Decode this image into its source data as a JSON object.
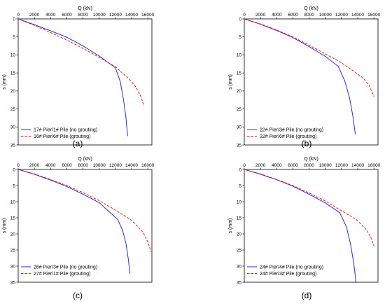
{
  "colors": {
    "no_grouting": "#2b2bd6",
    "grouting": "#e02020",
    "axis": "#000000"
  },
  "chart_data": [
    {
      "panel_label": "(a)",
      "type": "line",
      "xlabel": "Q (kN)",
      "ylabel": "s (mm)",
      "x_ticks": [
        0,
        2000,
        4000,
        6000,
        8000,
        10000,
        12000,
        14000,
        16000
      ],
      "y_ticks": [
        0,
        5,
        10,
        15,
        20,
        25,
        30,
        35
      ],
      "xlim": [
        0,
        16500
      ],
      "ylim": [
        0,
        35
      ],
      "legend_position": "bottom-left",
      "series": [
        {
          "name": "17# Pier/1# Pile (no grouting)",
          "style": "solid",
          "points": [
            [
              0,
              0
            ],
            [
              2000,
              1.6
            ],
            [
              4000,
              3.3
            ],
            [
              6000,
              5.1
            ],
            [
              8000,
              7.5
            ],
            [
              10000,
              10.3
            ],
            [
              12000,
              13.6
            ],
            [
              12600,
              17.5
            ],
            [
              13000,
              22.5
            ],
            [
              13300,
              27.5
            ],
            [
              13500,
              32.5
            ]
          ]
        },
        {
          "name": "16# Pier/6# Pile (grouting)",
          "style": "dashed",
          "points": [
            [
              0,
              0
            ],
            [
              2000,
              1.8
            ],
            [
              4000,
              3.8
            ],
            [
              6000,
              5.9
            ],
            [
              8000,
              8.2
            ],
            [
              10000,
              10.7
            ],
            [
              12000,
              13.3
            ],
            [
              13500,
              16.3
            ],
            [
              14500,
              18.8
            ],
            [
              15100,
              21.3
            ],
            [
              15500,
              24
            ]
          ]
        }
      ]
    },
    {
      "panel_label": "(b)",
      "type": "line",
      "xlabel": "Q (kN)",
      "ylabel": "s (mm)",
      "x_ticks": [
        0,
        2000,
        4000,
        6000,
        8000,
        10000,
        12000,
        14000,
        16000
      ],
      "y_ticks": [
        0,
        5,
        10,
        15,
        20,
        25,
        30,
        35
      ],
      "xlim": [
        0,
        16500
      ],
      "ylim": [
        0,
        35
      ],
      "legend_position": "bottom-left",
      "series": [
        {
          "name": "22# Pier/3# Pile (no grouting)",
          "style": "solid",
          "points": [
            [
              0,
              0
            ],
            [
              2000,
              1.5
            ],
            [
              4000,
              3.2
            ],
            [
              6000,
              5.2
            ],
            [
              8000,
              7.7
            ],
            [
              10000,
              10.4
            ],
            [
              11600,
              13.2
            ],
            [
              12400,
              17.2
            ],
            [
              13000,
              22
            ],
            [
              13400,
              27
            ],
            [
              13700,
              32
            ]
          ]
        },
        {
          "name": "22# Pier/6# Pile (grouting)",
          "style": "dashed",
          "points": [
            [
              0,
              0
            ],
            [
              2000,
              1.4
            ],
            [
              4000,
              3.1
            ],
            [
              6000,
              5
            ],
            [
              8000,
              7.3
            ],
            [
              10000,
              9.7
            ],
            [
              12000,
              12.2
            ],
            [
              13500,
              14.5
            ],
            [
              14700,
              16.5
            ],
            [
              15400,
              18.5
            ],
            [
              16000,
              21.5
            ]
          ]
        }
      ]
    },
    {
      "panel_label": "(c)",
      "type": "line",
      "xlabel": "Q (kN)",
      "ylabel": "s (mm)",
      "x_ticks": [
        0,
        2000,
        4000,
        6000,
        8000,
        10000,
        12000,
        14000,
        16000
      ],
      "y_ticks": [
        0,
        5,
        10,
        15,
        20,
        25,
        30,
        35
      ],
      "xlim": [
        0,
        16500
      ],
      "ylim": [
        0,
        35
      ],
      "legend_position": "bottom-left",
      "series": [
        {
          "name": "26# Pier/3# Pile (no grouting)",
          "style": "solid",
          "points": [
            [
              0,
              0
            ],
            [
              2000,
              1.5
            ],
            [
              4000,
              3.3
            ],
            [
              6000,
              5.3
            ],
            [
              8000,
              7.7
            ],
            [
              10000,
              10.3
            ],
            [
              12300,
              15.6
            ],
            [
              12900,
              19
            ],
            [
              13300,
              23
            ],
            [
              13600,
              28
            ],
            [
              13800,
              32.3
            ]
          ]
        },
        {
          "name": "27# Pier/1# Pile (grouting)",
          "style": "dashed",
          "points": [
            [
              0,
              0
            ],
            [
              2000,
              1.4
            ],
            [
              4000,
              3.1
            ],
            [
              6000,
              5
            ],
            [
              8000,
              7.2
            ],
            [
              10000,
              9.7
            ],
            [
              12000,
              12.6
            ],
            [
              14000,
              15.8
            ],
            [
              15400,
              19.5
            ],
            [
              16000,
              22.5
            ],
            [
              16400,
              25.6
            ]
          ]
        }
      ]
    },
    {
      "panel_label": "(d)",
      "type": "line",
      "xlabel": "Q (kN)",
      "ylabel": "s (mm)",
      "x_ticks": [
        0,
        2000,
        4000,
        6000,
        8000,
        10000,
        12000,
        14000,
        16000
      ],
      "y_ticks": [
        0,
        5,
        10,
        15,
        20,
        25,
        30,
        35
      ],
      "xlim": [
        0,
        16500
      ],
      "ylim": [
        0,
        35
      ],
      "legend_position": "bottom-left",
      "series": [
        {
          "name": "24# Pier/4# Pile (no grouting)",
          "style": "solid",
          "points": [
            [
              0,
              0
            ],
            [
              2000,
              1.5
            ],
            [
              4000,
              3.2
            ],
            [
              6000,
              5.2
            ],
            [
              8000,
              7.7
            ],
            [
              10000,
              10.4
            ],
            [
              11800,
              13.5
            ],
            [
              12600,
              17.8
            ],
            [
              13100,
              23
            ],
            [
              13500,
              29
            ],
            [
              13800,
              35.2
            ]
          ]
        },
        {
          "name": "24# Pier/3# Pile (grouting)",
          "style": "dashed",
          "points": [
            [
              0,
              0
            ],
            [
              2000,
              1.4
            ],
            [
              4000,
              3.1
            ],
            [
              6000,
              5
            ],
            [
              8000,
              7.3
            ],
            [
              10000,
              9.8
            ],
            [
              12000,
              12.8
            ],
            [
              13800,
              15.5
            ],
            [
              15000,
              18.5
            ],
            [
              15600,
              21
            ],
            [
              16000,
              23.8
            ]
          ]
        }
      ]
    }
  ]
}
